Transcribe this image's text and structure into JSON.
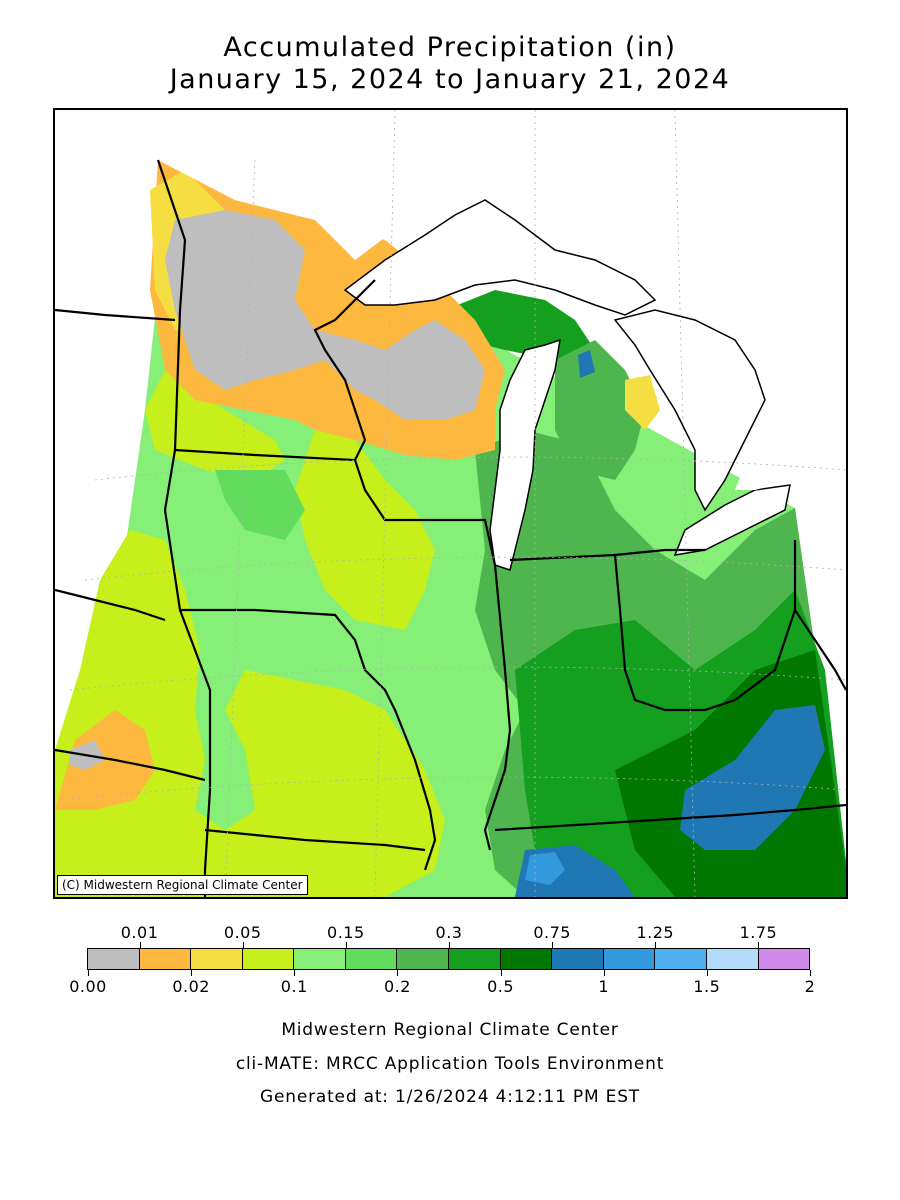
{
  "title": {
    "line1": "Accumulated Precipitation (in)",
    "line2": "January 15, 2024 to January 21, 2024"
  },
  "map": {
    "copyright": "(C) Midwestern Regional Climate Center"
  },
  "legend": {
    "colors": [
      "#bebebe",
      "#fdb93f",
      "#f4de41",
      "#c7ef1b",
      "#85ef77",
      "#63dc5e",
      "#4fb54f",
      "#14a01e",
      "#007800",
      "#1f78b4",
      "#3399dd",
      "#4fb0f0",
      "#b3dbfa",
      "#d28aec"
    ],
    "top_labels": [
      "0.01",
      "0.05",
      "0.15",
      "0.3",
      "0.75",
      "1.25",
      "1.75"
    ],
    "bottom_labels": [
      "0.00",
      "0.02",
      "0.1",
      "0.2",
      "0.5",
      "1",
      "1.5",
      "2"
    ]
  },
  "credits": {
    "line1": "Midwestern Regional Climate Center",
    "line2": "cli-MATE: MRCC Application Tools Environment",
    "line3": "Generated at: 1/26/2024 4:12:11 PM EST"
  }
}
